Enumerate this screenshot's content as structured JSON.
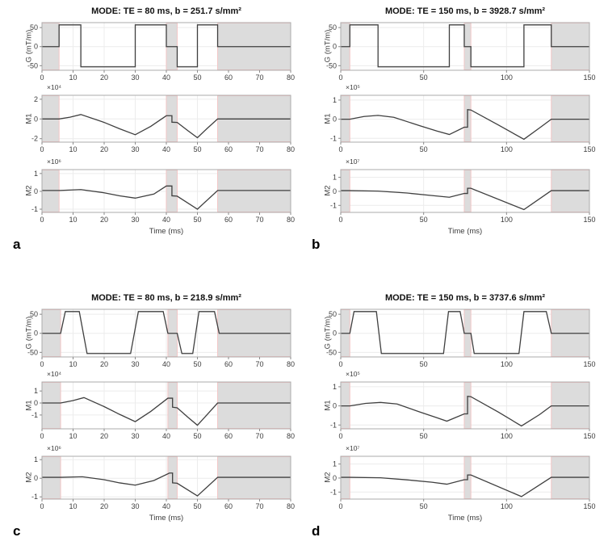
{
  "figure": {
    "x_axis_label": "Time (ms)",
    "grid": true,
    "legend": "none",
    "colors": {
      "background": "#ffffff",
      "line": "#3f3f3f",
      "grid": "#ececec",
      "axis_box": "#ababab",
      "axis_tick": "#8a8a8a",
      "tick_text": "#3c3c3c",
      "shade_fill": "#dcdcdc",
      "shade_border": "#f2c6c6"
    }
  },
  "chart_data": [
    {
      "type": "line",
      "panel_label": "a",
      "title": "MODE: TE = 80 ms, b = 251.7 s/mm²",
      "xlabel": "Time (ms)",
      "xlim": [
        0,
        80
      ],
      "xticks": [
        0,
        10,
        20,
        30,
        40,
        50,
        60,
        70,
        80
      ],
      "shaded_x_regions": [
        [
          0,
          5.5
        ],
        [
          40,
          43.5
        ],
        [
          56.5,
          80
        ]
      ],
      "subplots": [
        {
          "ylabel": "G (mT/m)",
          "scale_label": "",
          "ylim": [
            -62,
            63
          ],
          "yticks": [
            50,
            0,
            -50
          ],
          "x": [
            0,
            5.5,
            5.5,
            12.5,
            12.5,
            30,
            30,
            40,
            40,
            43.5,
            43.5,
            50,
            50,
            56.5,
            56.5,
            80
          ],
          "y": [
            0,
            0,
            57,
            57,
            -53,
            -53,
            57,
            57,
            0,
            0,
            -53,
            -53,
            57,
            57,
            0,
            0
          ]
        },
        {
          "ylabel": "M1",
          "scale_label": "×10⁴",
          "ylim": [
            -2.35,
            2.4
          ],
          "yticks": [
            2,
            0,
            -2
          ],
          "x": [
            0,
            5.5,
            9,
            12.5,
            20,
            25,
            30,
            35,
            40,
            41.8,
            41.8,
            43.5,
            47,
            50,
            53,
            56.5,
            80
          ],
          "y": [
            0,
            0,
            0.18,
            0.45,
            -0.35,
            -1.0,
            -1.6,
            -0.75,
            0.33,
            0.33,
            -0.33,
            -0.35,
            -1.2,
            -1.9,
            -1.0,
            0,
            0
          ]
        },
        {
          "ylabel": "M2",
          "scale_label": "×10⁶",
          "ylim": [
            -1.18,
            1.22
          ],
          "yticks": [
            1,
            0,
            -1
          ],
          "x": [
            0,
            5.5,
            12.5,
            20,
            25,
            30,
            36,
            40,
            41.8,
            41.8,
            43.5,
            50,
            56.5,
            80
          ],
          "y": [
            0.05,
            0.05,
            0.1,
            -0.08,
            -0.25,
            -0.38,
            -0.15,
            0.3,
            0.3,
            -0.25,
            -0.27,
            -1.0,
            0.05,
            0.05
          ]
        }
      ]
    },
    {
      "type": "line",
      "panel_label": "b",
      "title": "MODE: TE = 150 ms, b = 3928.7 s/mm²",
      "xlabel": "Time (ms)",
      "xlim": [
        0,
        150
      ],
      "xticks": [
        0,
        50,
        100,
        150
      ],
      "shaded_x_regions": [
        [
          0,
          5.5
        ],
        [
          74.5,
          78.5
        ],
        [
          127,
          150
        ]
      ],
      "subplots": [
        {
          "ylabel": "G (mT/m)",
          "scale_label": "",
          "ylim": [
            -62,
            63
          ],
          "yticks": [
            50,
            0,
            -50
          ],
          "x": [
            0,
            5.5,
            5.5,
            22.5,
            22.5,
            65.5,
            65.5,
            74.5,
            74.5,
            78.5,
            78.5,
            110.5,
            110.5,
            127,
            127,
            150
          ],
          "y": [
            0,
            0,
            57,
            57,
            -53,
            -53,
            57,
            57,
            0,
            0,
            -53,
            -53,
            57,
            57,
            0,
            0
          ]
        },
        {
          "ylabel": "M1",
          "scale_label": "×10⁵",
          "ylim": [
            -1.2,
            1.25
          ],
          "yticks": [
            1,
            0,
            -1
          ],
          "x": [
            0,
            5.5,
            14,
            22.5,
            32,
            48,
            58,
            65.5,
            74.5,
            76.5,
            76.5,
            78.5,
            95,
            110.5,
            120,
            127,
            150
          ],
          "y": [
            0,
            0,
            0.14,
            0.2,
            0.1,
            -0.35,
            -0.62,
            -0.8,
            -0.42,
            -0.42,
            0.5,
            0.48,
            -0.3,
            -1.05,
            -0.45,
            0,
            0
          ]
        },
        {
          "ylabel": "M2",
          "scale_label": "×10⁷",
          "ylim": [
            -1.5,
            1.55
          ],
          "yticks": [
            1,
            0,
            -1
          ],
          "x": [
            0,
            5.5,
            22.5,
            40,
            55,
            65.5,
            74.5,
            76.5,
            76.5,
            78.5,
            110.5,
            127,
            150
          ],
          "y": [
            0.05,
            0.05,
            0.02,
            -0.12,
            -0.3,
            -0.42,
            -0.15,
            -0.15,
            0.22,
            0.22,
            -1.3,
            0.05,
            0.05
          ]
        }
      ]
    },
    {
      "type": "line",
      "panel_label": "c",
      "title": "MODE: TE = 80 ms, b = 218.9 s/mm²",
      "xlabel": "Time (ms)",
      "xlim": [
        0,
        80
      ],
      "xticks": [
        0,
        10,
        20,
        30,
        40,
        50,
        60,
        70,
        80
      ],
      "shaded_x_regions": [
        [
          0,
          6
        ],
        [
          40.5,
          43.5
        ],
        [
          56.5,
          80
        ]
      ],
      "subplots": [
        {
          "ylabel": "G (mT/m)",
          "scale_label": "",
          "ylim": [
            -62,
            63
          ],
          "yticks": [
            50,
            0,
            -50
          ],
          "x": [
            0,
            6,
            7.5,
            12,
            14.5,
            28.5,
            31,
            39,
            40.5,
            43.5,
            45,
            48.5,
            50.5,
            55.5,
            57,
            80
          ],
          "y": [
            0,
            0,
            57,
            57,
            -53,
            -53,
            57,
            57,
            0,
            0,
            -53,
            -53,
            57,
            57,
            0,
            0
          ]
        },
        {
          "ylabel": "M1",
          "scale_label": "×10⁴",
          "ylim": [
            -2.15,
            1.75
          ],
          "yticks": [
            1,
            0,
            -1
          ],
          "x": [
            0,
            6,
            10,
            13.5,
            20,
            25,
            30,
            35,
            40.5,
            42,
            42,
            43.5,
            47,
            50,
            53,
            56.5,
            80
          ],
          "y": [
            0,
            0,
            0.2,
            0.45,
            -0.3,
            -0.95,
            -1.55,
            -0.7,
            0.4,
            0.4,
            -0.35,
            -0.4,
            -1.2,
            -1.85,
            -1.0,
            0,
            0
          ]
        },
        {
          "ylabel": "M2",
          "scale_label": "×10⁶",
          "ylim": [
            -1.12,
            1.18
          ],
          "yticks": [
            1,
            0,
            -1
          ],
          "x": [
            0,
            6,
            13,
            20,
            25,
            30,
            36,
            41,
            42,
            42,
            43.5,
            50,
            56.5,
            80
          ],
          "y": [
            0.05,
            0.05,
            0.08,
            -0.08,
            -0.25,
            -0.37,
            -0.12,
            0.28,
            0.28,
            -0.25,
            -0.27,
            -0.95,
            0.05,
            0.05
          ]
        }
      ]
    },
    {
      "type": "line",
      "panel_label": "d",
      "title": "MODE: TE = 150 ms, b = 3737.6 s/mm²",
      "xlabel": "Time (ms)",
      "xlim": [
        0,
        150
      ],
      "xticks": [
        0,
        50,
        100,
        150
      ],
      "shaded_x_regions": [
        [
          0,
          5.5
        ],
        [
          74.5,
          78.5
        ],
        [
          127,
          150
        ]
      ],
      "subplots": [
        {
          "ylabel": "G (mT/m)",
          "scale_label": "",
          "ylim": [
            -62,
            63
          ],
          "yticks": [
            50,
            0,
            -50
          ],
          "x": [
            0,
            5.5,
            8,
            21.5,
            24.5,
            62,
            65,
            72,
            74.5,
            78.5,
            80.5,
            107.5,
            110.5,
            124,
            127,
            150
          ],
          "y": [
            0,
            0,
            57,
            57,
            -53,
            -53,
            57,
            57,
            0,
            0,
            -53,
            -53,
            57,
            57,
            0,
            0
          ]
        },
        {
          "ylabel": "M1",
          "scale_label": "×10⁵",
          "ylim": [
            -1.2,
            1.25
          ],
          "yticks": [
            1,
            0,
            -1
          ],
          "x": [
            0,
            5.5,
            15,
            24,
            34,
            48,
            58,
            64,
            74.5,
            76.5,
            76.5,
            78.5,
            95,
            109,
            120,
            127,
            150
          ],
          "y": [
            0,
            0,
            0.13,
            0.18,
            0.1,
            -0.33,
            -0.62,
            -0.8,
            -0.42,
            -0.42,
            0.5,
            0.48,
            -0.32,
            -1.05,
            -0.45,
            0,
            0
          ]
        },
        {
          "ylabel": "M2",
          "scale_label": "×10⁷",
          "ylim": [
            -1.5,
            1.55
          ],
          "yticks": [
            1,
            0,
            -1
          ],
          "x": [
            0,
            5.5,
            24,
            40,
            55,
            64,
            74.5,
            76.5,
            76.5,
            78.5,
            109,
            127,
            150
          ],
          "y": [
            0.05,
            0.05,
            0.02,
            -0.13,
            -0.3,
            -0.44,
            -0.12,
            -0.12,
            0.22,
            0.22,
            -1.32,
            0.05,
            0.05
          ]
        }
      ]
    }
  ]
}
